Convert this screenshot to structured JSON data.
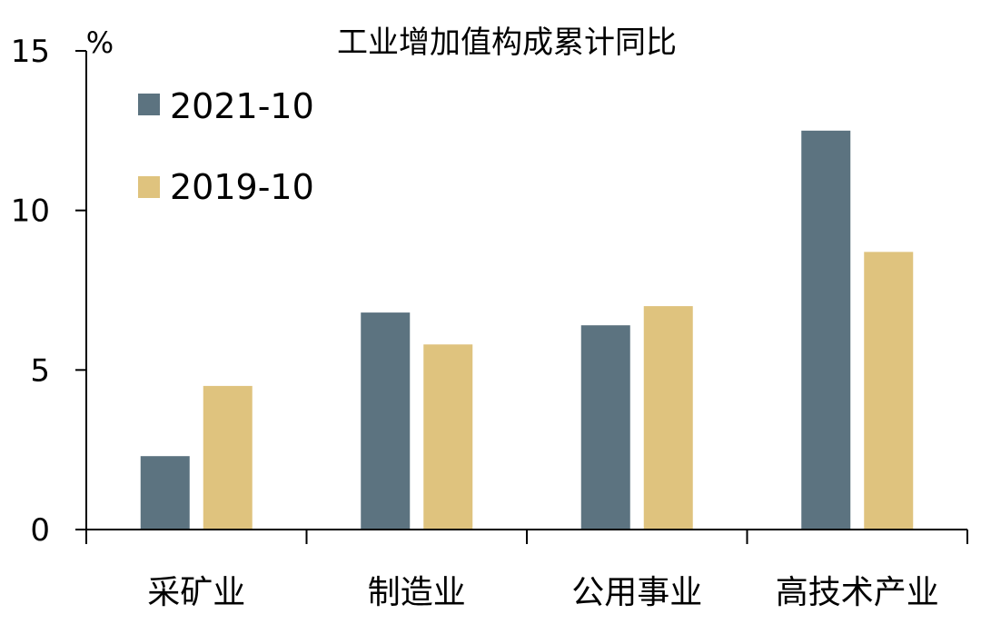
{
  "chart_data": {
    "type": "bar",
    "title": "工业增加值构成累计同比",
    "unit": "%",
    "categories": [
      "采矿业",
      "制造业",
      "公用事业",
      "高技术产业"
    ],
    "series": [
      {
        "name": "2021-10",
        "color": "#5c7380",
        "values": [
          2.3,
          6.8,
          6.4,
          12.5
        ]
      },
      {
        "name": "2019-10",
        "color": "#dfc37e",
        "values": [
          4.5,
          5.8,
          7.0,
          8.7
        ]
      }
    ],
    "yticks": [
      0,
      5,
      10,
      15
    ],
    "ylim": [
      0,
      15
    ],
    "grid": false,
    "legend_position": "top-left"
  }
}
